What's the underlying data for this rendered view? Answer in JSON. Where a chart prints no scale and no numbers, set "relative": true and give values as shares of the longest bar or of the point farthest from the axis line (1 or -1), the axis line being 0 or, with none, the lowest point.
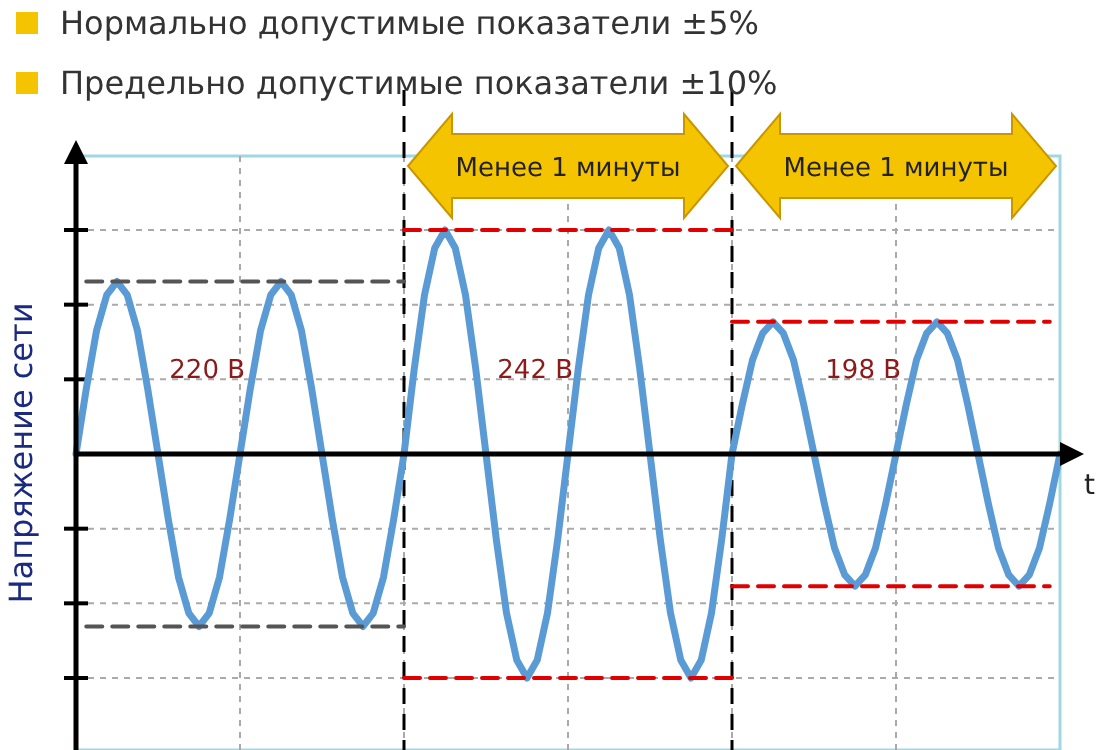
{
  "chart_data": {
    "type": "line",
    "relative": true,
    "ylabel": "Напряжение сети",
    "xlabel": "t",
    "grid": true,
    "categories": [
      null,
      null,
      null,
      null,
      null,
      null,
      null,
      null,
      null,
      null,
      null,
      null,
      null,
      null,
      null,
      null,
      null,
      null,
      null,
      null,
      null,
      null,
      null,
      null,
      null,
      null,
      null,
      null,
      null,
      null,
      null,
      null,
      null,
      null,
      null,
      null,
      null,
      null,
      null,
      null,
      null,
      null,
      null,
      null,
      null,
      null,
      null,
      null,
      null,
      null,
      null,
      null,
      null,
      null,
      null,
      null,
      null,
      null,
      null,
      null,
      null,
      null,
      null,
      null,
      null,
      null,
      null,
      null,
      null,
      null,
      null,
      null,
      null,
      null,
      null,
      null,
      null,
      null,
      null,
      null,
      null,
      null,
      null,
      null,
      null,
      null,
      null,
      null,
      null,
      null,
      null,
      null,
      null,
      null,
      null,
      null,
      null
    ],
    "series": [
      {
        "color": "#5b9bd5",
        "values": [
          0,
          0.29,
          0.55,
          0.71,
          0.77,
          0.71,
          0.55,
          0.29,
          0,
          -0.29,
          -0.55,
          -0.71,
          -0.77,
          -0.71,
          -0.55,
          -0.29,
          0,
          0.29,
          0.55,
          0.71,
          0.77,
          0.71,
          0.55,
          0.29,
          0,
          -0.29,
          -0.55,
          -0.71,
          -0.77,
          -0.71,
          -0.55,
          -0.29,
          0,
          0.38,
          0.71,
          0.92,
          1,
          0.92,
          0.71,
          0.38,
          0,
          -0.38,
          -0.71,
          -0.92,
          -1,
          -0.92,
          -0.71,
          -0.38,
          0,
          0.38,
          0.71,
          0.92,
          1,
          0.92,
          0.71,
          0.38,
          0,
          -0.38,
          -0.71,
          -0.92,
          -1,
          -0.92,
          -0.71,
          -0.38,
          0,
          0.22,
          0.42,
          0.54,
          0.59,
          0.54,
          0.42,
          0.22,
          0,
          -0.22,
          -0.42,
          -0.54,
          -0.59,
          -0.54,
          -0.42,
          -0.22,
          0,
          0.22,
          0.42,
          0.54,
          0.59,
          0.54,
          0.42,
          0.22,
          0,
          -0.22,
          -0.42,
          -0.54,
          -0.59,
          -0.54,
          -0.42,
          -0.22,
          0
        ]
      },
      {
        "color": "#555555",
        "line_style": "dashed",
        "values": [
          null,
          0.77,
          0.77,
          0.77,
          0.77,
          0.77,
          0.77,
          0.77,
          0.77,
          0.77,
          0.77,
          0.77,
          0.77,
          0.77,
          0.77,
          0.77,
          0.77,
          0.77,
          0.77,
          0.77,
          0.77,
          0.77,
          0.77,
          0.77,
          0.77,
          0.77,
          0.77,
          0.77,
          0.77,
          0.77,
          0.77,
          0.77,
          0.77,
          null,
          null,
          null,
          null,
          null,
          null,
          null,
          null,
          null,
          null,
          null,
          null,
          null,
          null,
          null,
          null,
          null,
          null,
          null,
          null,
          null,
          null,
          null,
          null,
          null,
          null,
          null,
          null,
          null,
          null,
          null,
          null,
          null,
          null,
          null,
          null,
          null,
          null,
          null,
          null,
          null,
          null,
          null,
          null,
          null,
          null,
          null,
          null,
          null,
          null,
          null,
          null,
          null,
          null,
          null,
          null,
          null,
          null,
          null,
          null,
          null,
          null,
          null,
          null
        ]
      },
      {
        "color": "#555555",
        "line_style": "dashed",
        "values": [
          null,
          -0.77,
          -0.77,
          -0.77,
          -0.77,
          -0.77,
          -0.77,
          -0.77,
          -0.77,
          -0.77,
          -0.77,
          -0.77,
          -0.77,
          -0.77,
          -0.77,
          -0.77,
          -0.77,
          -0.77,
          -0.77,
          -0.77,
          -0.77,
          -0.77,
          -0.77,
          -0.77,
          -0.77,
          -0.77,
          -0.77,
          -0.77,
          -0.77,
          -0.77,
          -0.77,
          -0.77,
          -0.77,
          null,
          null,
          null,
          null,
          null,
          null,
          null,
          null,
          null,
          null,
          null,
          null,
          null,
          null,
          null,
          null,
          null,
          null,
          null,
          null,
          null,
          null,
          null,
          null,
          null,
          null,
          null,
          null,
          null,
          null,
          null,
          null,
          null,
          null,
          null,
          null,
          null,
          null,
          null,
          null,
          null,
          null,
          null,
          null,
          null,
          null,
          null,
          null,
          null,
          null,
          null,
          null,
          null,
          null,
          null,
          null,
          null,
          null,
          null,
          null,
          null,
          null,
          null,
          null
        ]
      },
      {
        "color": "#e00000",
        "line_style": "dashed",
        "values": [
          null,
          null,
          null,
          null,
          null,
          null,
          null,
          null,
          null,
          null,
          null,
          null,
          null,
          null,
          null,
          null,
          null,
          null,
          null,
          null,
          null,
          null,
          null,
          null,
          null,
          null,
          null,
          null,
          null,
          null,
          null,
          null,
          1,
          1,
          1,
          1,
          1,
          1,
          1,
          1,
          1,
          1,
          1,
          1,
          1,
          1,
          1,
          1,
          1,
          1,
          1,
          1,
          1,
          1,
          1,
          1,
          1,
          1,
          1,
          1,
          1,
          1,
          1,
          1,
          1,
          null,
          null,
          null,
          null,
          null,
          null,
          null,
          null,
          null,
          null,
          null,
          null,
          null,
          null,
          null,
          null,
          null,
          null,
          null,
          null,
          null,
          null,
          null,
          null,
          null,
          null,
          null,
          null,
          null,
          null,
          null,
          null
        ]
      },
      {
        "color": "#e00000",
        "line_style": "dashed",
        "values": [
          null,
          null,
          null,
          null,
          null,
          null,
          null,
          null,
          null,
          null,
          null,
          null,
          null,
          null,
          null,
          null,
          null,
          null,
          null,
          null,
          null,
          null,
          null,
          null,
          null,
          null,
          null,
          null,
          null,
          null,
          null,
          null,
          -1,
          -1,
          -1,
          -1,
          -1,
          -1,
          -1,
          -1,
          -1,
          -1,
          -1,
          -1,
          -1,
          -1,
          -1,
          -1,
          -1,
          -1,
          -1,
          -1,
          -1,
          -1,
          -1,
          -1,
          -1,
          -1,
          -1,
          -1,
          -1,
          -1,
          -1,
          -1,
          -1,
          null,
          null,
          null,
          null,
          null,
          null,
          null,
          null,
          null,
          null,
          null,
          null,
          null,
          null,
          null,
          null,
          null,
          null,
          null,
          null,
          null,
          null,
          null,
          null,
          null,
          null,
          null,
          null,
          null,
          null,
          null,
          null
        ]
      },
      {
        "color": "#e00000",
        "line_style": "dashed",
        "values": [
          null,
          null,
          null,
          null,
          null,
          null,
          null,
          null,
          null,
          null,
          null,
          null,
          null,
          null,
          null,
          null,
          null,
          null,
          null,
          null,
          null,
          null,
          null,
          null,
          null,
          null,
          null,
          null,
          null,
          null,
          null,
          null,
          null,
          null,
          null,
          null,
          null,
          null,
          null,
          null,
          null,
          null,
          null,
          null,
          null,
          null,
          null,
          null,
          null,
          null,
          null,
          null,
          null,
          null,
          null,
          null,
          null,
          null,
          null,
          null,
          null,
          null,
          null,
          null,
          0.59,
          0.59,
          0.59,
          0.59,
          0.59,
          0.59,
          0.59,
          0.59,
          0.59,
          0.59,
          0.59,
          0.59,
          0.59,
          0.59,
          0.59,
          0.59,
          0.59,
          0.59,
          0.59,
          0.59,
          0.59,
          0.59,
          0.59,
          0.59,
          0.59,
          0.59,
          0.59,
          0.59,
          0.59,
          0.59,
          0.59,
          0.59,
          null
        ]
      },
      {
        "color": "#e00000",
        "line_style": "dashed",
        "values": [
          null,
          null,
          null,
          null,
          null,
          null,
          null,
          null,
          null,
          null,
          null,
          null,
          null,
          null,
          null,
          null,
          null,
          null,
          null,
          null,
          null,
          null,
          null,
          null,
          null,
          null,
          null,
          null,
          null,
          null,
          null,
          null,
          null,
          null,
          null,
          null,
          null,
          null,
          null,
          null,
          null,
          null,
          null,
          null,
          null,
          null,
          null,
          null,
          null,
          null,
          null,
          null,
          null,
          null,
          null,
          null,
          null,
          null,
          null,
          null,
          null,
          null,
          null,
          null,
          -0.59,
          -0.59,
          -0.59,
          -0.59,
          -0.59,
          -0.59,
          -0.59,
          -0.59,
          -0.59,
          -0.59,
          -0.59,
          -0.59,
          -0.59,
          -0.59,
          -0.59,
          -0.59,
          -0.59,
          -0.59,
          -0.59,
          -0.59,
          -0.59,
          -0.59,
          -0.59,
          -0.59,
          -0.59,
          -0.59,
          -0.59,
          -0.59,
          -0.59,
          -0.59,
          -0.59,
          -0.59,
          null
        ]
      }
    ],
    "annotations": [
      "Нормально допустимые  показатели ±5%",
      "Предельно допустимые  показатели ±10%",
      "Менее 1 минуты",
      "Менее 1 минуты",
      "220 В",
      "242 В",
      "198 В"
    ]
  }
}
